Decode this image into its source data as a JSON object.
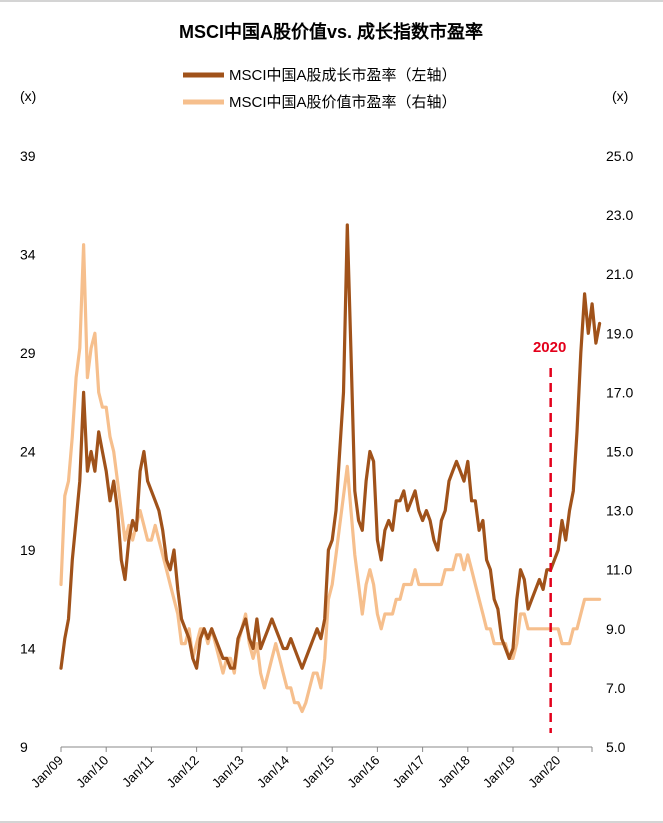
{
  "chart_data": {
    "type": "line",
    "title": "MSCI中国A股价值vs. 成长指数市盈率",
    "left_axis": {
      "unit": "(x)",
      "ticks": [
        9,
        14,
        19,
        24,
        29,
        34,
        39
      ],
      "ylim": [
        9,
        39
      ]
    },
    "right_axis": {
      "unit": "(x)",
      "ticks": [
        "5.0",
        "7.0",
        "9.0",
        "11.0",
        "13.0",
        "15.0",
        "17.0",
        "19.0",
        "21.0",
        "23.0",
        "25.0"
      ],
      "ylim": [
        5,
        25
      ]
    },
    "x_ticks": [
      "Jan/09",
      "Jan/10",
      "Jan/11",
      "Jan/12",
      "Jan/13",
      "Jan/14",
      "Jan/15",
      "Jan/16",
      "Jan/17",
      "Jan/18",
      "Jan/19",
      "Jan/20"
    ],
    "x_range": [
      "2009-01",
      "2020-12"
    ],
    "legend_position": "top-center",
    "annotation": {
      "label": "2020",
      "x": "2019-11",
      "color": "#e3001b"
    },
    "series": [
      {
        "name": "MSCI中国A股成长市盈率（左轴）",
        "axis": "left",
        "color": "#a0521a",
        "points": [
          [
            "2009-01",
            13.0
          ],
          [
            "2009-02",
            14.5
          ],
          [
            "2009-03",
            15.5
          ],
          [
            "2009-04",
            18.5
          ],
          [
            "2009-05",
            20.5
          ],
          [
            "2009-06",
            22.5
          ],
          [
            "2009-07",
            27.0
          ],
          [
            "2009-08",
            23.0
          ],
          [
            "2009-09",
            24.0
          ],
          [
            "2009-10",
            23.0
          ],
          [
            "2009-11",
            25.0
          ],
          [
            "2009-12",
            24.0
          ],
          [
            "2010-01",
            23.0
          ],
          [
            "2010-02",
            21.5
          ],
          [
            "2010-03",
            22.5
          ],
          [
            "2010-04",
            21.0
          ],
          [
            "2010-05",
            18.5
          ],
          [
            "2010-06",
            17.5
          ],
          [
            "2010-07",
            19.5
          ],
          [
            "2010-08",
            20.5
          ],
          [
            "2010-09",
            20.0
          ],
          [
            "2010-10",
            23.0
          ],
          [
            "2010-11",
            24.0
          ],
          [
            "2010-12",
            22.5
          ],
          [
            "2011-01",
            22.0
          ],
          [
            "2011-02",
            21.5
          ],
          [
            "2011-03",
            21.0
          ],
          [
            "2011-04",
            20.0
          ],
          [
            "2011-05",
            18.5
          ],
          [
            "2011-06",
            18.0
          ],
          [
            "2011-07",
            19.0
          ],
          [
            "2011-08",
            17.0
          ],
          [
            "2011-09",
            15.5
          ],
          [
            "2011-10",
            15.0
          ],
          [
            "2011-11",
            14.5
          ],
          [
            "2011-12",
            13.5
          ],
          [
            "2012-01",
            13.0
          ],
          [
            "2012-02",
            14.5
          ],
          [
            "2012-03",
            15.0
          ],
          [
            "2012-04",
            14.5
          ],
          [
            "2012-05",
            15.0
          ],
          [
            "2012-06",
            14.5
          ],
          [
            "2012-07",
            14.0
          ],
          [
            "2012-08",
            13.5
          ],
          [
            "2012-09",
            13.5
          ],
          [
            "2012-10",
            13.0
          ],
          [
            "2012-11",
            13.0
          ],
          [
            "2012-12",
            14.5
          ],
          [
            "2013-01",
            15.0
          ],
          [
            "2013-02",
            15.5
          ],
          [
            "2013-03",
            14.5
          ],
          [
            "2013-04",
            14.0
          ],
          [
            "2013-05",
            15.5
          ],
          [
            "2013-06",
            14.0
          ],
          [
            "2013-07",
            14.5
          ],
          [
            "2013-08",
            15.0
          ],
          [
            "2013-09",
            15.5
          ],
          [
            "2013-10",
            15.0
          ],
          [
            "2013-11",
            14.5
          ],
          [
            "2013-12",
            14.0
          ],
          [
            "2014-01",
            14.0
          ],
          [
            "2014-02",
            14.5
          ],
          [
            "2014-03",
            14.0
          ],
          [
            "2014-04",
            13.5
          ],
          [
            "2014-05",
            13.0
          ],
          [
            "2014-06",
            13.5
          ],
          [
            "2014-07",
            14.0
          ],
          [
            "2014-08",
            14.5
          ],
          [
            "2014-09",
            15.0
          ],
          [
            "2014-10",
            14.5
          ],
          [
            "2014-11",
            15.5
          ],
          [
            "2014-12",
            19.0
          ],
          [
            "2015-01",
            19.5
          ],
          [
            "2015-02",
            21.0
          ],
          [
            "2015-03",
            24.0
          ],
          [
            "2015-04",
            27.0
          ],
          [
            "2015-05",
            35.5
          ],
          [
            "2015-06",
            29.0
          ],
          [
            "2015-07",
            22.0
          ],
          [
            "2015-08",
            20.5
          ],
          [
            "2015-09",
            20.0
          ],
          [
            "2015-10",
            22.5
          ],
          [
            "2015-11",
            24.0
          ],
          [
            "2015-12",
            23.5
          ],
          [
            "2016-01",
            19.5
          ],
          [
            "2016-02",
            18.5
          ],
          [
            "2016-03",
            20.0
          ],
          [
            "2016-04",
            20.5
          ],
          [
            "2016-05",
            20.0
          ],
          [
            "2016-06",
            21.5
          ],
          [
            "2016-07",
            21.5
          ],
          [
            "2016-08",
            22.0
          ],
          [
            "2016-09",
            21.0
          ],
          [
            "2016-10",
            21.5
          ],
          [
            "2016-11",
            22.0
          ],
          [
            "2016-12",
            21.0
          ],
          [
            "2017-01",
            20.5
          ],
          [
            "2017-02",
            21.0
          ],
          [
            "2017-03",
            20.5
          ],
          [
            "2017-04",
            19.5
          ],
          [
            "2017-05",
            19.0
          ],
          [
            "2017-06",
            20.5
          ],
          [
            "2017-07",
            21.0
          ],
          [
            "2017-08",
            22.5
          ],
          [
            "2017-09",
            23.0
          ],
          [
            "2017-10",
            23.5
          ],
          [
            "2017-11",
            23.0
          ],
          [
            "2017-12",
            22.5
          ],
          [
            "2018-01",
            23.5
          ],
          [
            "2018-02",
            21.5
          ],
          [
            "2018-03",
            21.5
          ],
          [
            "2018-04",
            20.0
          ],
          [
            "2018-05",
            20.5
          ],
          [
            "2018-06",
            18.5
          ],
          [
            "2018-07",
            18.0
          ],
          [
            "2018-08",
            16.5
          ],
          [
            "2018-09",
            16.0
          ],
          [
            "2018-10",
            14.5
          ],
          [
            "2018-11",
            14.0
          ],
          [
            "2018-12",
            13.5
          ],
          [
            "2019-01",
            14.0
          ],
          [
            "2019-02",
            16.5
          ],
          [
            "2019-03",
            18.0
          ],
          [
            "2019-04",
            17.5
          ],
          [
            "2019-05",
            16.0
          ],
          [
            "2019-06",
            16.5
          ],
          [
            "2019-07",
            17.0
          ],
          [
            "2019-08",
            17.5
          ],
          [
            "2019-09",
            17.0
          ],
          [
            "2019-10",
            18.0
          ],
          [
            "2019-11",
            18.0
          ],
          [
            "2019-12",
            18.5
          ],
          [
            "2020-01",
            19.0
          ],
          [
            "2020-02",
            20.5
          ],
          [
            "2020-03",
            19.5
          ],
          [
            "2020-04",
            21.0
          ],
          [
            "2020-05",
            22.0
          ],
          [
            "2020-06",
            25.0
          ],
          [
            "2020-07",
            29.0
          ],
          [
            "2020-08",
            32.0
          ],
          [
            "2020-09",
            30.0
          ],
          [
            "2020-10",
            31.5
          ],
          [
            "2020-11",
            29.5
          ],
          [
            "2020-12",
            30.5
          ]
        ]
      },
      {
        "name": "MSCI中国A股价值市盈率（右轴）",
        "axis": "right",
        "color": "#f6bf8d",
        "points": [
          [
            "2009-01",
            10.5
          ],
          [
            "2009-02",
            13.5
          ],
          [
            "2009-03",
            14.0
          ],
          [
            "2009-04",
            15.5
          ],
          [
            "2009-05",
            17.5
          ],
          [
            "2009-06",
            18.5
          ],
          [
            "2009-07",
            22.0
          ],
          [
            "2009-08",
            17.5
          ],
          [
            "2009-09",
            18.5
          ],
          [
            "2009-10",
            19.0
          ],
          [
            "2009-11",
            17.0
          ],
          [
            "2009-12",
            16.5
          ],
          [
            "2010-01",
            16.5
          ],
          [
            "2010-02",
            15.5
          ],
          [
            "2010-03",
            15.0
          ],
          [
            "2010-04",
            14.0
          ],
          [
            "2010-05",
            13.0
          ],
          [
            "2010-06",
            12.0
          ],
          [
            "2010-07",
            12.5
          ],
          [
            "2010-08",
            12.0
          ],
          [
            "2010-09",
            12.5
          ],
          [
            "2010-10",
            13.0
          ],
          [
            "2010-11",
            12.5
          ],
          [
            "2010-12",
            12.0
          ],
          [
            "2011-01",
            12.0
          ],
          [
            "2011-02",
            12.5
          ],
          [
            "2011-03",
            12.0
          ],
          [
            "2011-04",
            11.5
          ],
          [
            "2011-05",
            11.0
          ],
          [
            "2011-06",
            10.5
          ],
          [
            "2011-07",
            10.0
          ],
          [
            "2011-08",
            9.5
          ],
          [
            "2011-09",
            8.5
          ],
          [
            "2011-10",
            8.5
          ],
          [
            "2011-11",
            9.0
          ],
          [
            "2011-12",
            8.0
          ],
          [
            "2012-01",
            8.5
          ],
          [
            "2012-02",
            9.0
          ],
          [
            "2012-03",
            9.0
          ],
          [
            "2012-04",
            8.5
          ],
          [
            "2012-05",
            9.0
          ],
          [
            "2012-06",
            8.5
          ],
          [
            "2012-07",
            8.0
          ],
          [
            "2012-08",
            7.5
          ],
          [
            "2012-09",
            8.0
          ],
          [
            "2012-10",
            8.0
          ],
          [
            "2012-11",
            7.5
          ],
          [
            "2012-12",
            8.5
          ],
          [
            "2013-01",
            9.0
          ],
          [
            "2013-02",
            9.5
          ],
          [
            "2013-03",
            8.5
          ],
          [
            "2013-04",
            8.0
          ],
          [
            "2013-05",
            8.5
          ],
          [
            "2013-06",
            7.5
          ],
          [
            "2013-07",
            7.0
          ],
          [
            "2013-08",
            7.5
          ],
          [
            "2013-09",
            8.0
          ],
          [
            "2013-10",
            8.5
          ],
          [
            "2013-11",
            8.0
          ],
          [
            "2013-12",
            7.5
          ],
          [
            "2014-01",
            7.0
          ],
          [
            "2014-02",
            7.0
          ],
          [
            "2014-03",
            6.5
          ],
          [
            "2014-04",
            6.5
          ],
          [
            "2014-05",
            6.2
          ],
          [
            "2014-06",
            6.5
          ],
          [
            "2014-07",
            7.0
          ],
          [
            "2014-08",
            7.5
          ],
          [
            "2014-09",
            7.5
          ],
          [
            "2014-10",
            7.0
          ],
          [
            "2014-11",
            8.0
          ],
          [
            "2014-12",
            10.0
          ],
          [
            "2015-01",
            10.5
          ],
          [
            "2015-02",
            11.5
          ],
          [
            "2015-03",
            12.5
          ],
          [
            "2015-04",
            13.5
          ],
          [
            "2015-05",
            14.5
          ],
          [
            "2015-06",
            13.0
          ],
          [
            "2015-07",
            11.5
          ],
          [
            "2015-08",
            10.5
          ],
          [
            "2015-09",
            9.5
          ],
          [
            "2015-10",
            10.5
          ],
          [
            "2015-11",
            11.0
          ],
          [
            "2015-12",
            10.5
          ],
          [
            "2016-01",
            9.5
          ],
          [
            "2016-02",
            9.0
          ],
          [
            "2016-03",
            9.5
          ],
          [
            "2016-04",
            9.5
          ],
          [
            "2016-05",
            9.5
          ],
          [
            "2016-06",
            10.0
          ],
          [
            "2016-07",
            10.0
          ],
          [
            "2016-08",
            10.5
          ],
          [
            "2016-09",
            10.5
          ],
          [
            "2016-10",
            10.5
          ],
          [
            "2016-11",
            11.0
          ],
          [
            "2016-12",
            10.5
          ],
          [
            "2017-01",
            10.5
          ],
          [
            "2017-02",
            10.5
          ],
          [
            "2017-03",
            10.5
          ],
          [
            "2017-04",
            10.5
          ],
          [
            "2017-05",
            10.5
          ],
          [
            "2017-06",
            10.5
          ],
          [
            "2017-07",
            11.0
          ],
          [
            "2017-08",
            11.0
          ],
          [
            "2017-09",
            11.0
          ],
          [
            "2017-10",
            11.5
          ],
          [
            "2017-11",
            11.5
          ],
          [
            "2017-12",
            11.0
          ],
          [
            "2018-01",
            11.5
          ],
          [
            "2018-02",
            11.0
          ],
          [
            "2018-03",
            10.5
          ],
          [
            "2018-04",
            10.0
          ],
          [
            "2018-05",
            9.5
          ],
          [
            "2018-06",
            9.0
          ],
          [
            "2018-07",
            9.0
          ],
          [
            "2018-08",
            8.5
          ],
          [
            "2018-09",
            8.5
          ],
          [
            "2018-10",
            8.5
          ],
          [
            "2018-11",
            8.5
          ],
          [
            "2018-12",
            8.0
          ],
          [
            "2019-01",
            8.0
          ],
          [
            "2019-02",
            8.5
          ],
          [
            "2019-03",
            9.5
          ],
          [
            "2019-04",
            9.5
          ],
          [
            "2019-05",
            9.0
          ],
          [
            "2019-06",
            9.0
          ],
          [
            "2019-07",
            9.0
          ],
          [
            "2019-08",
            9.0
          ],
          [
            "2019-09",
            9.0
          ],
          [
            "2019-10",
            9.0
          ],
          [
            "2019-11",
            9.0
          ],
          [
            "2019-12",
            9.0
          ],
          [
            "2020-01",
            9.0
          ],
          [
            "2020-02",
            8.5
          ],
          [
            "2020-03",
            8.5
          ],
          [
            "2020-04",
            8.5
          ],
          [
            "2020-05",
            9.0
          ],
          [
            "2020-06",
            9.0
          ],
          [
            "2020-07",
            9.5
          ],
          [
            "2020-08",
            10.0
          ],
          [
            "2020-09",
            10.0
          ],
          [
            "2020-10",
            10.0
          ],
          [
            "2020-11",
            10.0
          ],
          [
            "2020-12",
            10.0
          ]
        ]
      }
    ]
  }
}
